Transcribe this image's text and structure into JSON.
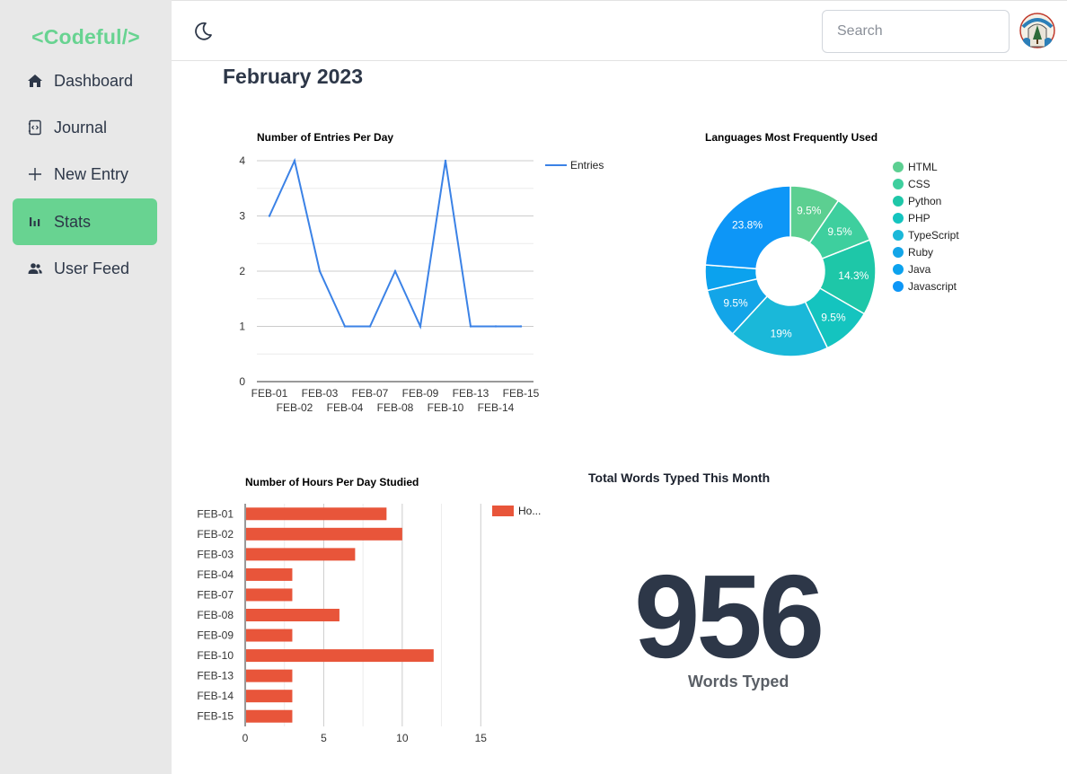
{
  "app": {
    "logo": "<Codeful/>"
  },
  "sidebar": {
    "items": [
      {
        "label": "Dashboard",
        "icon": "home-icon",
        "active": false
      },
      {
        "label": "Journal",
        "icon": "journal-icon",
        "active": false
      },
      {
        "label": "New Entry",
        "icon": "plus-icon",
        "active": false
      },
      {
        "label": "Stats",
        "icon": "bar-chart-icon",
        "active": true
      },
      {
        "label": "User Feed",
        "icon": "users-icon",
        "active": false
      }
    ]
  },
  "header": {
    "theme_toggle_icon": "moon-icon",
    "search_placeholder": "Search",
    "avatar_icon": "user-avatar-icon"
  },
  "main": {
    "title": "February 2023"
  },
  "colors": {
    "accent": "#68d391",
    "line": "#3b82e6",
    "bar": "#e8553a",
    "sidebar_bg": "#e8e8e8"
  },
  "chart_data": [
    {
      "type": "line",
      "title": "Number of Entries Per Day",
      "categories": [
        "FEB-01",
        "FEB-02",
        "FEB-03",
        "FEB-04",
        "FEB-07",
        "FEB-08",
        "FEB-09",
        "FEB-10",
        "FEB-13",
        "FEB-14",
        "FEB-15"
      ],
      "series": [
        {
          "name": "Entries",
          "values": [
            3,
            4,
            2,
            1,
            1,
            2,
            1,
            4,
            1,
            1,
            1
          ]
        }
      ],
      "ylim": [
        0,
        4
      ],
      "yticks": [
        0,
        1,
        2,
        3,
        4
      ],
      "grid": true,
      "legend": "right"
    },
    {
      "type": "pie",
      "title": "Languages Most Frequently Used",
      "labels": [
        "HTML",
        "CSS",
        "Python",
        "PHP",
        "TypeScript",
        "Ruby",
        "Java",
        "Javascript"
      ],
      "values": [
        9.5,
        9.5,
        14.3,
        9.5,
        19,
        9.5,
        4.8,
        23.8
      ],
      "value_labels": [
        "9.5%",
        "9.5%",
        "14.3%",
        "9.5%",
        "19%",
        "9.5%",
        "",
        "23.8%"
      ],
      "colors": [
        "#5ccf91",
        "#3ecf9e",
        "#1ec7a8",
        "#14c4bf",
        "#1ab8d9",
        "#13a5e8",
        "#0ba2ee",
        "#0d96f7"
      ],
      "donut": true,
      "legend": "right"
    },
    {
      "type": "bar",
      "orientation": "horizontal",
      "title": "Number of Hours Per Day Studied",
      "categories": [
        "FEB-01",
        "FEB-02",
        "FEB-03",
        "FEB-04",
        "FEB-07",
        "FEB-08",
        "FEB-09",
        "FEB-10",
        "FEB-13",
        "FEB-14",
        "FEB-15"
      ],
      "series": [
        {
          "name": "Ho...",
          "values": [
            9,
            10,
            7,
            3,
            3,
            6,
            3,
            12,
            3,
            3,
            3
          ]
        }
      ],
      "xlim": [
        0,
        17.5
      ],
      "xticks": [
        0,
        5,
        10,
        15
      ],
      "grid": true,
      "legend": "top-right"
    }
  ],
  "stats": {
    "words_title": "Total Words Typed This Month",
    "words_value": "956",
    "words_label": "Words Typed"
  }
}
